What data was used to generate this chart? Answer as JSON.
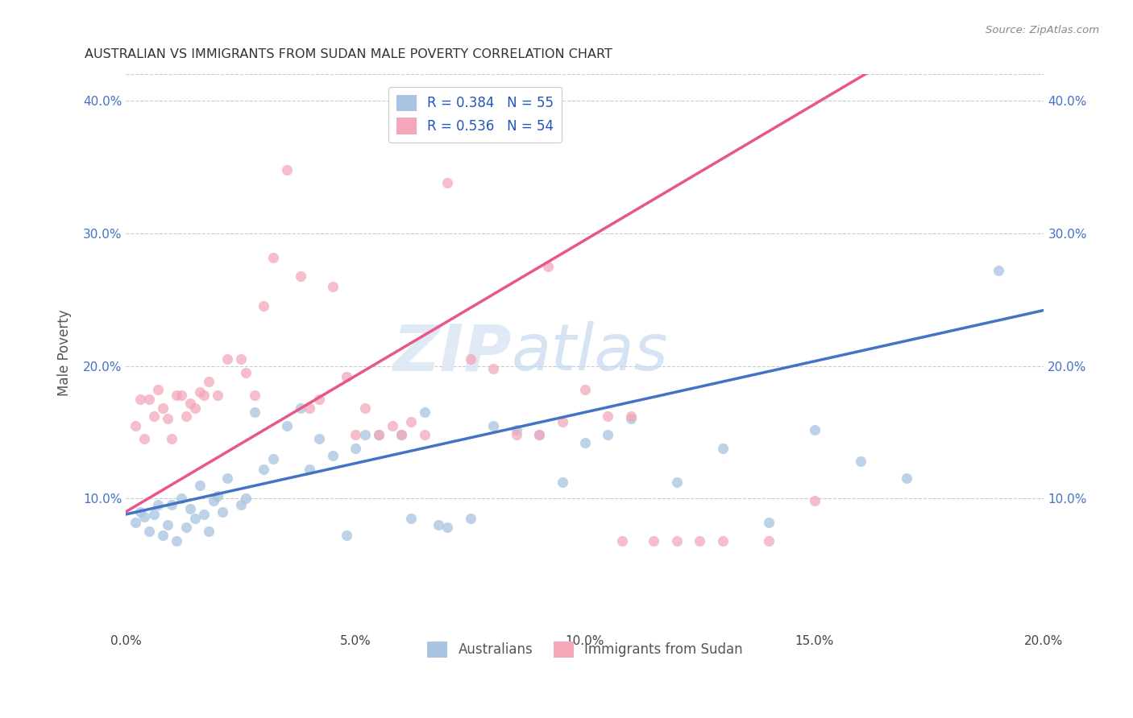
{
  "title": "AUSTRALIAN VS IMMIGRANTS FROM SUDAN MALE POVERTY CORRELATION CHART",
  "source": "Source: ZipAtlas.com",
  "ylabel_label": "Male Poverty",
  "xlim": [
    0.0,
    0.2
  ],
  "ylim": [
    0.0,
    0.42
  ],
  "xticks": [
    0.0,
    0.05,
    0.1,
    0.15,
    0.2
  ],
  "yticks": [
    0.1,
    0.2,
    0.3,
    0.4
  ],
  "xtick_labels": [
    "0.0%",
    "5.0%",
    "10.0%",
    "15.0%",
    "20.0%"
  ],
  "ytick_labels": [
    "10.0%",
    "20.0%",
    "30.0%",
    "40.0%"
  ],
  "color_australian": "#a8c4e0",
  "color_sudan": "#f4a7b9",
  "line_color_australian": "#4472c4",
  "line_color_sudan": "#e8568a",
  "R_australian": 0.384,
  "N_australian": 55,
  "R_sudan": 0.536,
  "N_sudan": 54,
  "watermark_zip": "ZIP",
  "watermark_atlas": "atlas",
  "legend_label_australian": "Australians",
  "legend_label_sudan": "Immigrants from Sudan",
  "aus_intercept": 0.088,
  "aus_slope": 0.77,
  "sud_intercept": 0.09,
  "sud_slope": 2.05,
  "australian_x": [
    0.002,
    0.003,
    0.004,
    0.005,
    0.006,
    0.007,
    0.008,
    0.009,
    0.01,
    0.011,
    0.012,
    0.013,
    0.014,
    0.015,
    0.016,
    0.017,
    0.018,
    0.019,
    0.02,
    0.021,
    0.022,
    0.025,
    0.026,
    0.028,
    0.03,
    0.032,
    0.035,
    0.038,
    0.04,
    0.042,
    0.045,
    0.048,
    0.05,
    0.052,
    0.055,
    0.06,
    0.062,
    0.065,
    0.068,
    0.07,
    0.075,
    0.08,
    0.085,
    0.09,
    0.095,
    0.1,
    0.105,
    0.11,
    0.12,
    0.13,
    0.14,
    0.15,
    0.16,
    0.17,
    0.19
  ],
  "australian_y": [
    0.082,
    0.09,
    0.086,
    0.075,
    0.088,
    0.095,
    0.072,
    0.08,
    0.095,
    0.068,
    0.1,
    0.078,
    0.092,
    0.085,
    0.11,
    0.088,
    0.075,
    0.098,
    0.102,
    0.09,
    0.115,
    0.095,
    0.1,
    0.165,
    0.122,
    0.13,
    0.155,
    0.168,
    0.122,
    0.145,
    0.132,
    0.072,
    0.138,
    0.148,
    0.148,
    0.148,
    0.085,
    0.165,
    0.08,
    0.078,
    0.085,
    0.155,
    0.152,
    0.148,
    0.112,
    0.142,
    0.148,
    0.16,
    0.112,
    0.138,
    0.082,
    0.152,
    0.128,
    0.115,
    0.272
  ],
  "sudan_x": [
    0.002,
    0.003,
    0.004,
    0.005,
    0.006,
    0.007,
    0.008,
    0.009,
    0.01,
    0.011,
    0.012,
    0.013,
    0.014,
    0.015,
    0.016,
    0.017,
    0.018,
    0.02,
    0.022,
    0.025,
    0.026,
    0.028,
    0.03,
    0.032,
    0.035,
    0.038,
    0.04,
    0.042,
    0.045,
    0.048,
    0.05,
    0.052,
    0.055,
    0.058,
    0.06,
    0.062,
    0.065,
    0.07,
    0.075,
    0.08,
    0.085,
    0.09,
    0.092,
    0.095,
    0.1,
    0.105,
    0.108,
    0.11,
    0.115,
    0.12,
    0.125,
    0.13,
    0.14,
    0.15
  ],
  "sudan_y": [
    0.155,
    0.175,
    0.145,
    0.175,
    0.162,
    0.182,
    0.168,
    0.16,
    0.145,
    0.178,
    0.178,
    0.162,
    0.172,
    0.168,
    0.18,
    0.178,
    0.188,
    0.178,
    0.205,
    0.205,
    0.195,
    0.178,
    0.245,
    0.282,
    0.348,
    0.268,
    0.168,
    0.175,
    0.26,
    0.192,
    0.148,
    0.168,
    0.148,
    0.155,
    0.148,
    0.158,
    0.148,
    0.338,
    0.205,
    0.198,
    0.148,
    0.148,
    0.275,
    0.158,
    0.182,
    0.162,
    0.068,
    0.162,
    0.068,
    0.068,
    0.068,
    0.068,
    0.068,
    0.098
  ]
}
